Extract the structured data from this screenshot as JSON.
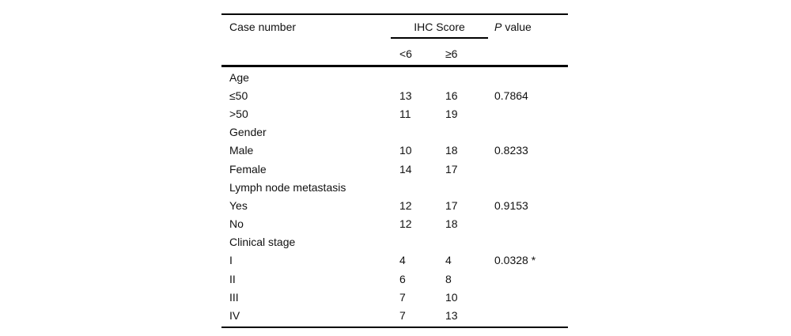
{
  "table": {
    "header": {
      "case_number": "Case number",
      "group": "IHC Score",
      "sub_lt6": "<6",
      "sub_ge6": "≥6",
      "p_italic": "P",
      "p_rest": "value"
    },
    "rows": [
      {
        "label": "Age",
        "lt6": "",
        "ge6": "",
        "p": ""
      },
      {
        "label": "≤50",
        "lt6": "13",
        "ge6": "16",
        "p": "0.7864"
      },
      {
        "label": ">50",
        "lt6": "11",
        "ge6": "19",
        "p": ""
      },
      {
        "label": "Gender",
        "lt6": "",
        "ge6": "",
        "p": ""
      },
      {
        "label": "Male",
        "lt6": "10",
        "ge6": "18",
        "p": "0.8233"
      },
      {
        "label": "Female",
        "lt6": "14",
        "ge6": "17",
        "p": ""
      },
      {
        "label": "Lymph node metastasis",
        "lt6": "",
        "ge6": "",
        "p": ""
      },
      {
        "label": "Yes",
        "lt6": "12",
        "ge6": "17",
        "p": "0.9153"
      },
      {
        "label": "No",
        "lt6": "12",
        "ge6": "18",
        "p": ""
      },
      {
        "label": "Clinical stage",
        "lt6": "",
        "ge6": "",
        "p": ""
      },
      {
        "label": "I",
        "lt6": "4",
        "ge6": "4",
        "p": "0.0328 *"
      },
      {
        "label": "II",
        "lt6": "6",
        "ge6": "8",
        "p": ""
      },
      {
        "label": "III",
        "lt6": "7",
        "ge6": "10",
        "p": ""
      },
      {
        "label": "IV",
        "lt6": "7",
        "ge6": "13",
        "p": ""
      }
    ]
  }
}
